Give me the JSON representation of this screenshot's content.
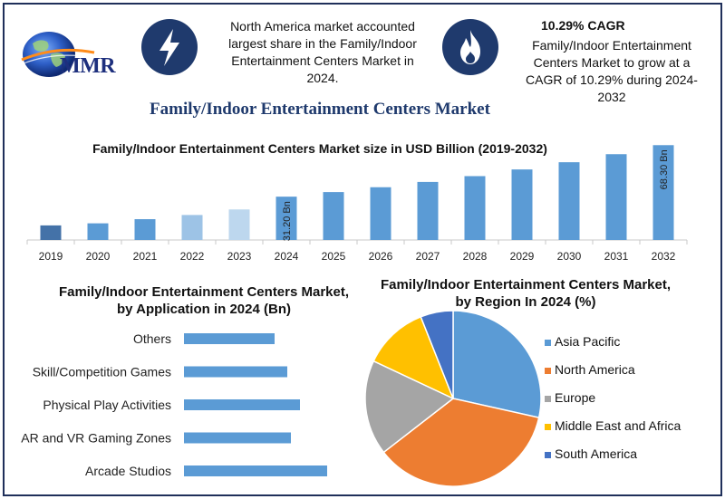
{
  "logo": {
    "text": "MMR"
  },
  "header": {
    "note_left": "North America market accounted largest share in the Family/Indoor Entertainment Centers Market in 2024.",
    "cagr_title": "10.29% CAGR",
    "note_right": "Family/Indoor Entertainment Centers Market to grow at a CAGR of 10.29% during 2024-2032",
    "icon_left": "lightning-bolt-icon",
    "icon_right": "flame-icon"
  },
  "main_title": "Family/Indoor Entertainment Centers Market",
  "colors": {
    "navy": "#1f3a6d",
    "bar": "#5b9bd5",
    "bar_dark": "#4472a8",
    "bar_light": "#9dc3e6",
    "bar_lighter": "#bdd7ee",
    "asia_pacific": "#5b9bd5",
    "north_america": "#ed7d31",
    "europe": "#a5a5a5",
    "middle_east": "#ffc000",
    "south_america": "#4472c4"
  },
  "chart_data": [
    {
      "type": "bar",
      "title": "Family/Indoor Entertainment Centers Market size in USD Billion (2019-2032)",
      "categories": [
        "2019",
        "2020",
        "2021",
        "2022",
        "2023",
        "2024",
        "2025",
        "2026",
        "2027",
        "2028",
        "2029",
        "2030",
        "2031",
        "2032"
      ],
      "values": [
        10.5,
        12.0,
        15.0,
        18.0,
        22.0,
        31.2,
        34.5,
        38.0,
        41.8,
        46.0,
        50.8,
        56.0,
        61.8,
        68.3
      ],
      "data_labels": {
        "2024": "31.20 Bn",
        "2032": "68.30 Bn"
      },
      "ylim": [
        0,
        75
      ],
      "grid": false
    },
    {
      "type": "bar",
      "orientation": "horizontal",
      "title": "Family/Indoor Entertainment Centers Market, by Application in 2024 (Bn)",
      "categories": [
        "Others",
        "Skill/Competition Games",
        "Physical Play Activities",
        "AR and VR Gaming Zones",
        "Arcade Studios"
      ],
      "values": [
        5.0,
        5.7,
        6.4,
        5.9,
        7.9
      ],
      "xlim": [
        0,
        9
      ],
      "grid": false
    },
    {
      "type": "pie",
      "title": "Family/Indoor Entertainment Centers Market, by Region In 2024 (%)",
      "labels": [
        "Asia Pacific",
        "North America",
        "Europe",
        "Middle East and Africa",
        "South America"
      ],
      "values": [
        28.5,
        36.0,
        17.5,
        12.0,
        6.0
      ],
      "legend": "right"
    }
  ]
}
